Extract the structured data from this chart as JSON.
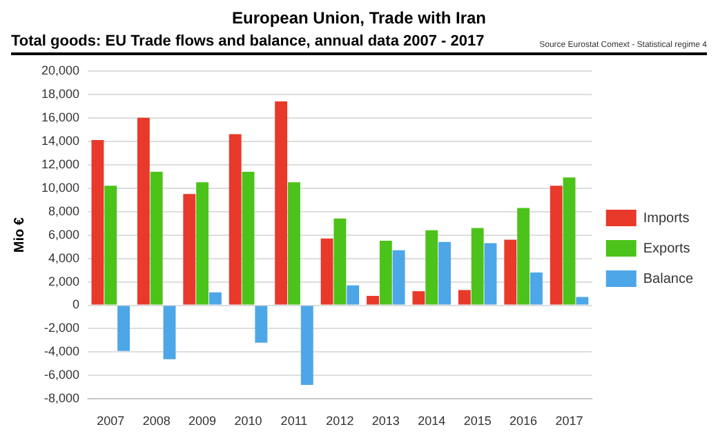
{
  "chart_data": {
    "type": "bar",
    "title": "European Union, Trade with Iran",
    "subtitle": "Total goods: EU Trade flows and balance, annual data 2007 - 2017",
    "annotations": [
      "Source Eurostat Comext  - Statistical regime 4"
    ],
    "ylabel": "Mio €",
    "categories": [
      "2007",
      "2008",
      "2009",
      "2010",
      "2011",
      "2012",
      "2013",
      "2014",
      "2015",
      "2016",
      "2017"
    ],
    "series": [
      {
        "name": "Imports",
        "color": "#e8392a",
        "values": [
          14100,
          16000,
          9500,
          14600,
          17400,
          5700,
          800,
          1200,
          1300,
          5600,
          10200
        ]
      },
      {
        "name": "Exports",
        "color": "#4cc31a",
        "values": [
          10200,
          11400,
          10500,
          11400,
          10500,
          7400,
          5500,
          6400,
          6600,
          8300,
          10900
        ]
      },
      {
        "name": "Balance",
        "color": "#4da6e8",
        "values": [
          -3900,
          -4600,
          1100,
          -3200,
          -6800,
          1700,
          4700,
          5400,
          5300,
          2800,
          700
        ]
      }
    ],
    "ylim": [
      -8000,
      20000
    ],
    "yticks": [
      {
        "value": -8000,
        "label": "-8,000"
      },
      {
        "value": -6000,
        "label": "-6,000"
      },
      {
        "value": -4000,
        "label": "-4,000"
      },
      {
        "value": -2000,
        "label": "-2,000"
      },
      0,
      {
        "value": 2000,
        "label": "2,000"
      },
      {
        "value": 4000,
        "label": "4,000"
      },
      {
        "value": 6000,
        "label": "6,000"
      },
      {
        "value": 8000,
        "label": "8,000"
      },
      {
        "value": 10000,
        "label": "10,000"
      },
      {
        "value": 12000,
        "label": "12,000"
      },
      {
        "value": 14000,
        "label": "14,000"
      },
      {
        "value": 16000,
        "label": "16,000"
      },
      {
        "value": 18000,
        "label": "18,000"
      },
      {
        "value": 20000,
        "label": "20,000"
      }
    ],
    "grid": "y",
    "legend": "right"
  }
}
